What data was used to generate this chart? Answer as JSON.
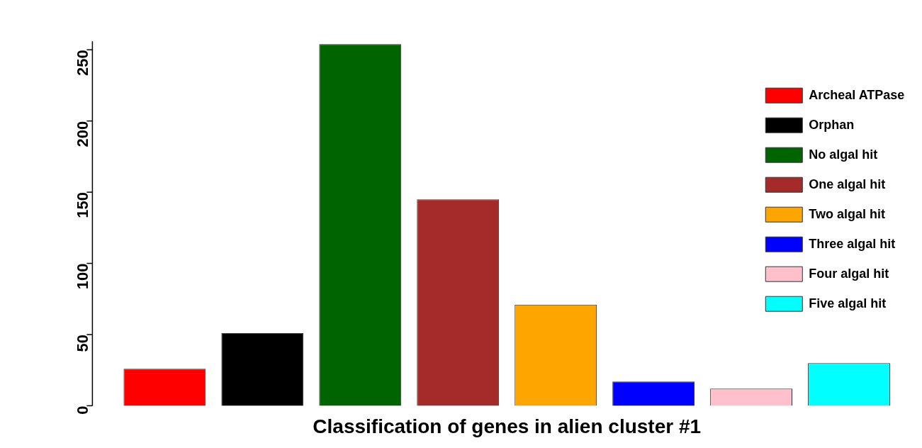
{
  "chart_data": {
    "type": "bar",
    "xlabel": "Classification of genes in alien cluster #1",
    "categories": [
      null,
      null,
      null,
      null,
      null,
      null,
      null,
      null
    ],
    "series": [
      {
        "name": "Archeal ATPase",
        "color": "#ff0000",
        "values": [
          26,
          null,
          null,
          null,
          null,
          null,
          null,
          null
        ]
      },
      {
        "name": "Orphan",
        "color": "#000000",
        "values": [
          null,
          51,
          null,
          null,
          null,
          null,
          null,
          null
        ]
      },
      {
        "name": "No algal hit",
        "color": "#006400",
        "values": [
          null,
          null,
          254,
          null,
          null,
          null,
          null,
          null
        ]
      },
      {
        "name": "One algal hit",
        "color": "#a52a2a",
        "values": [
          null,
          null,
          null,
          145,
          null,
          null,
          null,
          null
        ]
      },
      {
        "name": "Two algal hit",
        "color": "#ffa500",
        "values": [
          null,
          null,
          null,
          null,
          71,
          null,
          null,
          null
        ]
      },
      {
        "name": "Three algal hit",
        "color": "#0000ff",
        "values": [
          null,
          null,
          null,
          null,
          null,
          17,
          null,
          null
        ]
      },
      {
        "name": "Four algal hit",
        "color": "#ffc0cb",
        "values": [
          null,
          null,
          null,
          null,
          null,
          null,
          12,
          null
        ]
      },
      {
        "name": "Five algal hit",
        "color": "#00ffff",
        "values": [
          null,
          null,
          null,
          null,
          null,
          null,
          null,
          30
        ]
      }
    ],
    "ylim": [
      0,
      256
    ],
    "yticks": [
      0,
      50,
      100,
      150,
      200,
      250
    ],
    "grid": false,
    "stacked": true,
    "legend": "top right",
    "tick_labels": "y"
  }
}
